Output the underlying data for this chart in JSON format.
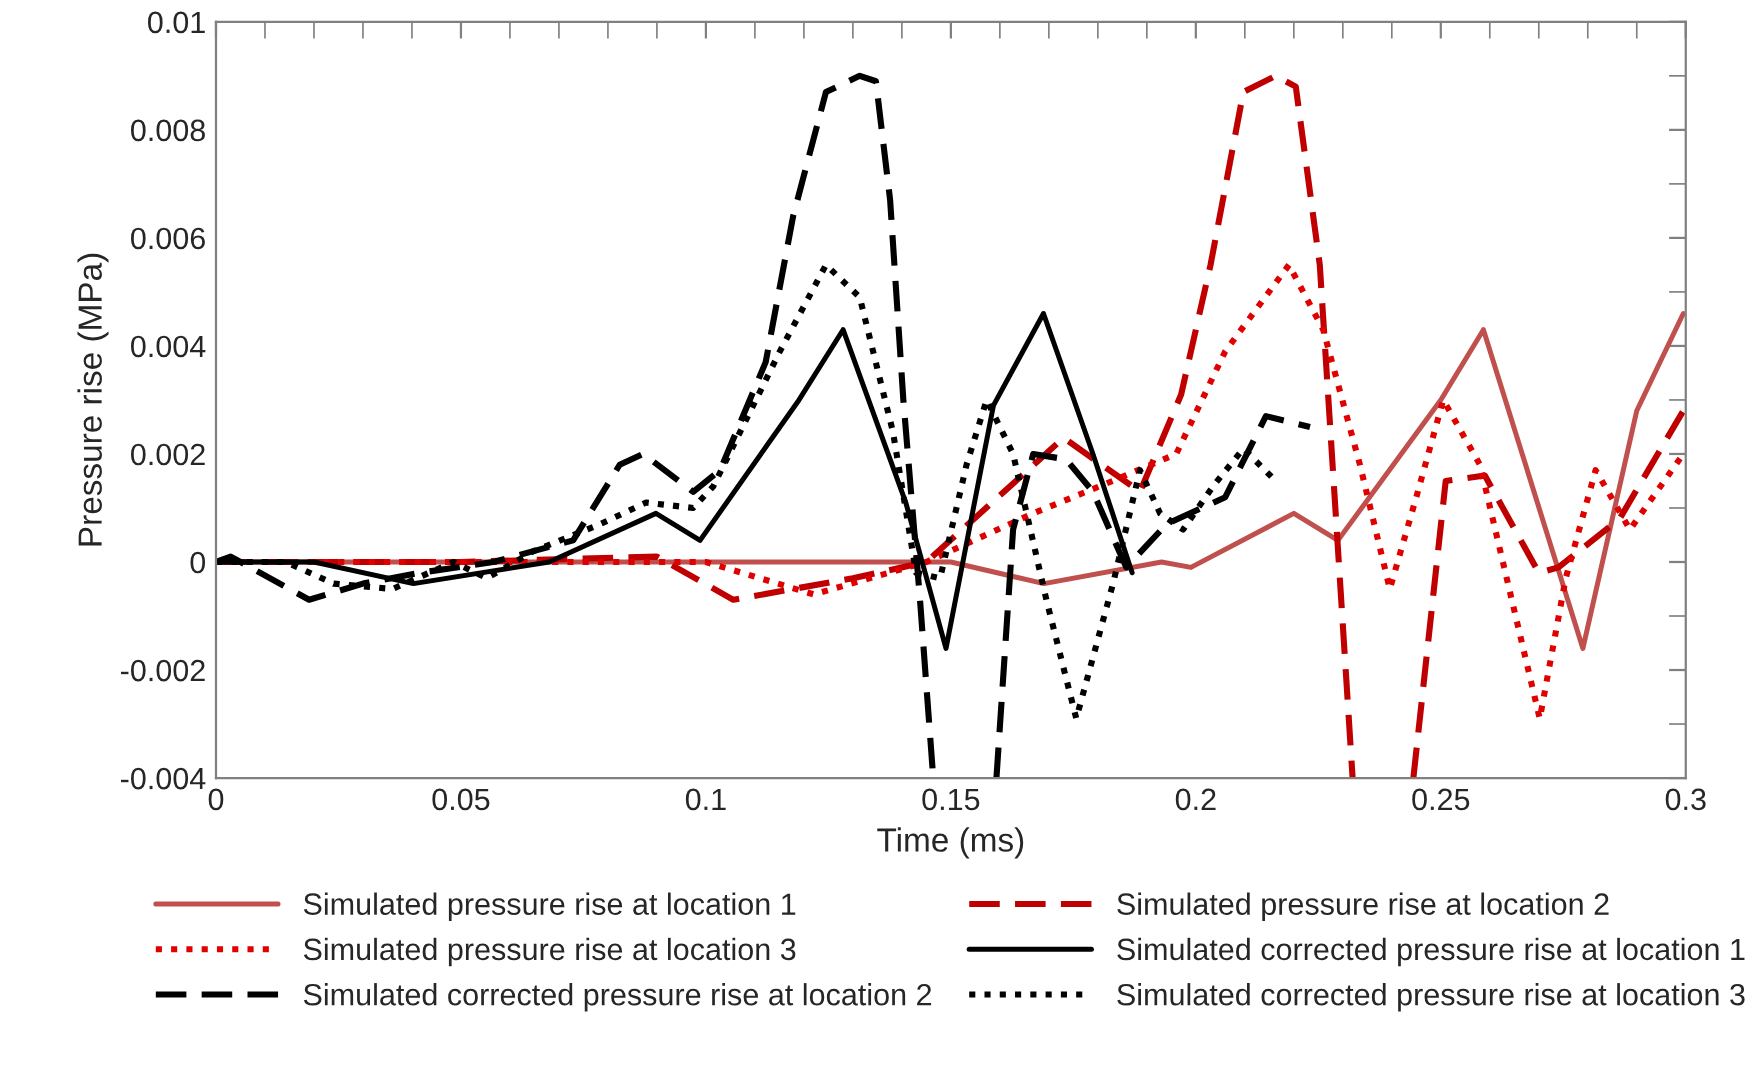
{
  "chart_data": {
    "type": "line",
    "xlabel": "Time (ms)",
    "ylabel": "Pressure rise (MPa)",
    "xlim": [
      0,
      0.3
    ],
    "xticks": [
      0,
      0.05,
      0.1,
      0.15,
      0.2,
      0.25,
      0.3
    ],
    "ylim": [
      -0.004,
      0.01
    ],
    "yticks": [
      -0.004,
      -0.002,
      0,
      0.002,
      0.004,
      0.006,
      0.008,
      0.01
    ],
    "grid": false,
    "legend": "bottom",
    "marker": "none",
    "series": [
      {
        "name": "Simulated pressure rise at location 1",
        "color": "#c0504d",
        "line_style": "solid",
        "x": [
          0,
          0.05,
          0.1,
          0.15,
          0.169,
          0.193,
          0.199,
          0.22,
          0.229,
          0.25,
          0.2587,
          0.279,
          0.29,
          0.2995
        ],
        "values": [
          0,
          0,
          0,
          0,
          -0.0004,
          0,
          -0.0001,
          0.0009,
          0.0004,
          0.003,
          0.0043,
          -0.0016,
          0.0028,
          0.0046
        ]
      },
      {
        "name": "Simulated pressure rise at location 2",
        "color": "#c00000",
        "line_style": "dashed",
        "x": [
          0,
          0.05,
          0.09,
          0.1056,
          0.13,
          0.145,
          0.173,
          0.1886,
          0.197,
          0.203,
          0.2097,
          0.2163,
          0.2204,
          0.2253,
          0.232,
          0.238,
          0.2444,
          0.251,
          0.259,
          0.27,
          0.274,
          0.2865,
          0.2995
        ],
        "values": [
          0,
          0,
          0.0001,
          -0.0007,
          -0.0003,
          0,
          0.0023,
          0.0013,
          0.0031,
          0.0055,
          0.0087,
          0.009,
          0.0088,
          0.0055,
          -0.004,
          null,
          -0.004,
          0.0015,
          0.0016,
          -0.0002,
          -0.0001,
          0.0008,
          0.0028
        ]
      },
      {
        "name": "Simulated pressure rise at location 3",
        "color": "#e00000",
        "line_style": "dotted",
        "x": [
          0,
          0.05,
          0.1,
          0.122,
          0.145,
          0.1668,
          0.183,
          0.196,
          0.206,
          0.219,
          0.226,
          0.2335,
          0.2396,
          0.245,
          0.2505,
          0.258,
          0.2702,
          0.2755,
          0.2816,
          0.2886,
          0.2995
        ],
        "values": [
          0,
          0,
          0,
          -0.0006,
          0,
          0.0009,
          0.0015,
          0.002,
          0.0039,
          0.0055,
          0.0043,
          0.0018,
          -0.0005,
          0.0012,
          0.003,
          0.0018,
          -0.0029,
          -0.0003,
          0.0017,
          0.0006,
          0.002
        ]
      },
      {
        "name": "Simulated corrected pressure rise at location 1",
        "color": "#000000",
        "line_style": "solid",
        "x": [
          0,
          0.02,
          0.0403,
          0.068,
          0.0898,
          0.0988,
          0.119,
          0.128,
          0.1408,
          0.149,
          0.1587,
          0.1689,
          0.179,
          0.187
        ],
        "values": [
          0,
          0,
          -0.0004,
          0,
          0.0009,
          0.0004,
          0.003,
          0.0043,
          0.0011,
          -0.0016,
          0.0029,
          0.0046,
          0.002,
          -0.0002
        ]
      },
      {
        "name": "Simulated corrected pressure rise at location 2",
        "color": "#000000",
        "line_style": "dashed",
        "x": [
          0,
          0.003,
          0.019,
          0.03,
          0.0416,
          0.0566,
          0.0729,
          0.0824,
          0.0872,
          0.0974,
          0.1029,
          0.1122,
          0.1178,
          0.1245,
          0.1314,
          0.1347,
          0.1376,
          0.1403,
          0.1437,
          0.1464,
          0.153,
          0.1593,
          0.1627,
          0.1668,
          0.1735,
          0.179,
          0.1858,
          0.194,
          0.206,
          0.2143,
          0.2233
        ],
        "values": [
          0,
          0.0001,
          -0.0007,
          -0.0004,
          -0.0002,
          0,
          0.0004,
          0.0018,
          0.002,
          0.0013,
          0.0017,
          0.0037,
          0.0064,
          0.0087,
          0.009,
          0.0089,
          0.0067,
          0.003,
          -0.0007,
          -0.004,
          null,
          -0.004,
          0.0006,
          0.002,
          0.0019,
          0.0013,
          -0.0001,
          0.0007,
          0.0012,
          0.0027,
          0.0025
        ]
      },
      {
        "name": "Simulated corrected pressure rise at location 3",
        "color": "#000000",
        "line_style": "dotted",
        "x": [
          0,
          0.0143,
          0.024,
          0.036,
          0.0485,
          0.0553,
          0.0648,
          0.0784,
          0.0878,
          0.0974,
          0.1015,
          0.1151,
          0.1245,
          0.1314,
          0.1382,
          0.1429,
          0.1478,
          0.1532,
          0.1573,
          0.1627,
          0.1695,
          0.1756,
          0.1831,
          0.1886,
          0.1927,
          0.1974,
          0.2035,
          0.2097,
          0.2163
        ],
        "values": [
          0,
          0,
          -0.0004,
          -0.0005,
          0,
          -0.0003,
          0.0002,
          0.0007,
          0.0011,
          0.001,
          0.0014,
          0.0039,
          0.0055,
          0.0049,
          0.0024,
          -0.0002,
          -0.0003,
          0.0018,
          0.003,
          0.002,
          -0.0007,
          -0.0029,
          -0.0004,
          0.0017,
          0.0009,
          0.0006,
          0.0014,
          0.0021,
          0.0015
        ]
      }
    ]
  }
}
